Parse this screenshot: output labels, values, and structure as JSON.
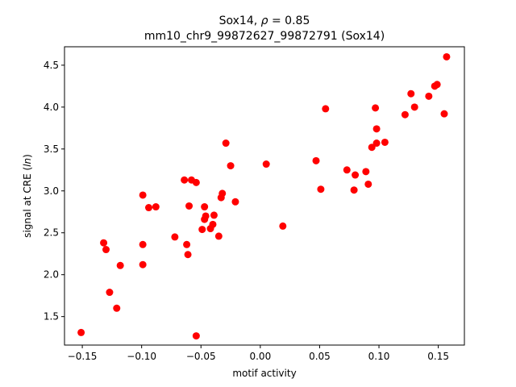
{
  "chart_data": {
    "type": "scatter",
    "title_line1_prefix": "Sox14, ",
    "title_line1_rho": "ρ",
    "title_line1_suffix": " = 0.85",
    "title_line2": "mm10_chr9_99872627_99872791 (Sox14)",
    "xlabel": "motif activity",
    "ylabel_prefix": "signal at CRE (",
    "ylabel_italic": "ln",
    "ylabel_suffix": ")",
    "xlim": [
      -0.165,
      0.172
    ],
    "ylim": [
      1.16,
      4.72
    ],
    "xticks": [
      -0.15,
      -0.1,
      -0.05,
      0.0,
      0.05,
      0.1,
      0.15
    ],
    "xtick_labels": [
      "−0.15",
      "−0.10",
      "−0.05",
      "0.00",
      "0.05",
      "0.10",
      "0.15"
    ],
    "yticks": [
      1.5,
      2.0,
      2.5,
      3.0,
      3.5,
      4.0,
      4.5
    ],
    "ytick_labels": [
      "1.5",
      "2.0",
      "2.5",
      "3.0",
      "3.5",
      "4.0",
      "4.5"
    ],
    "grid": false,
    "marker_color": "#ff0000",
    "points": [
      {
        "x": -0.151,
        "y": 1.31
      },
      {
        "x": -0.132,
        "y": 2.38
      },
      {
        "x": -0.13,
        "y": 2.3
      },
      {
        "x": -0.127,
        "y": 1.79
      },
      {
        "x": -0.121,
        "y": 1.6
      },
      {
        "x": -0.118,
        "y": 2.11
      },
      {
        "x": -0.099,
        "y": 2.95
      },
      {
        "x": -0.099,
        "y": 2.36
      },
      {
        "x": -0.099,
        "y": 2.12
      },
      {
        "x": -0.094,
        "y": 2.8
      },
      {
        "x": -0.088,
        "y": 2.81
      },
      {
        "x": -0.072,
        "y": 2.45
      },
      {
        "x": -0.064,
        "y": 3.13
      },
      {
        "x": -0.062,
        "y": 2.36
      },
      {
        "x": -0.061,
        "y": 2.24
      },
      {
        "x": -0.06,
        "y": 2.82
      },
      {
        "x": -0.058,
        "y": 3.13
      },
      {
        "x": -0.054,
        "y": 3.1
      },
      {
        "x": -0.054,
        "y": 1.27
      },
      {
        "x": -0.049,
        "y": 2.54
      },
      {
        "x": -0.047,
        "y": 2.81
      },
      {
        "x": -0.047,
        "y": 2.66
      },
      {
        "x": -0.046,
        "y": 2.7
      },
      {
        "x": -0.042,
        "y": 2.55
      },
      {
        "x": -0.04,
        "y": 2.6
      },
      {
        "x": -0.039,
        "y": 2.71
      },
      {
        "x": -0.035,
        "y": 2.46
      },
      {
        "x": -0.033,
        "y": 2.92
      },
      {
        "x": -0.032,
        "y": 2.97
      },
      {
        "x": -0.029,
        "y": 3.57
      },
      {
        "x": -0.025,
        "y": 3.3
      },
      {
        "x": -0.021,
        "y": 2.87
      },
      {
        "x": 0.005,
        "y": 3.32
      },
      {
        "x": 0.019,
        "y": 2.58
      },
      {
        "x": 0.047,
        "y": 3.36
      },
      {
        "x": 0.051,
        "y": 3.02
      },
      {
        "x": 0.055,
        "y": 3.98
      },
      {
        "x": 0.073,
        "y": 3.25
      },
      {
        "x": 0.079,
        "y": 3.01
      },
      {
        "x": 0.08,
        "y": 3.19
      },
      {
        "x": 0.089,
        "y": 3.23
      },
      {
        "x": 0.091,
        "y": 3.08
      },
      {
        "x": 0.094,
        "y": 3.52
      },
      {
        "x": 0.097,
        "y": 3.99
      },
      {
        "x": 0.098,
        "y": 3.74
      },
      {
        "x": 0.098,
        "y": 3.57
      },
      {
        "x": 0.105,
        "y": 3.58
      },
      {
        "x": 0.122,
        "y": 3.91
      },
      {
        "x": 0.127,
        "y": 4.16
      },
      {
        "x": 0.13,
        "y": 4.0
      },
      {
        "x": 0.142,
        "y": 4.13
      },
      {
        "x": 0.147,
        "y": 4.25
      },
      {
        "x": 0.149,
        "y": 4.27
      },
      {
        "x": 0.155,
        "y": 3.92
      },
      {
        "x": 0.157,
        "y": 4.6
      }
    ]
  }
}
